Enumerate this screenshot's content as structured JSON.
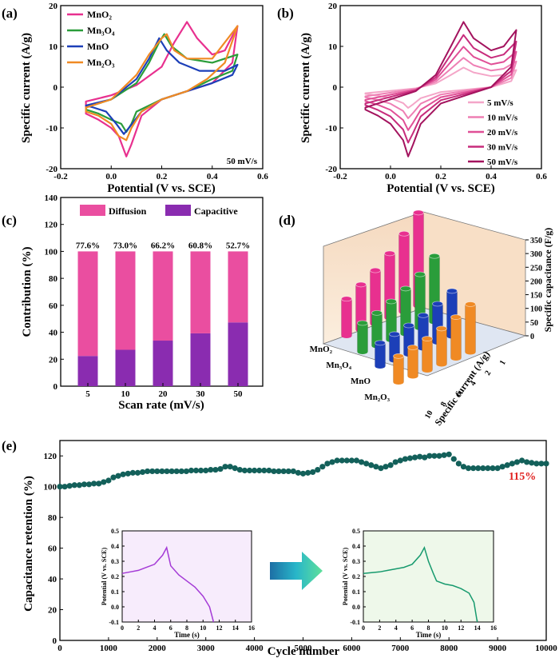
{
  "colors": {
    "MnO2": "#e8308f",
    "Mn3O4": "#2a9d3a",
    "MnO": "#1c3fb8",
    "Mn2O3": "#f08a24",
    "diffusion": "#ea4ea0",
    "capacitive": "#8a2cb0",
    "retention": "#13605a",
    "highlight": "#e0201e",
    "inset1_bg": "#f7ecfc",
    "inset1_line": "#a43ad6",
    "inset2_bg": "#eef8ea",
    "inset2_line": "#179a6e"
  },
  "chart_data": [
    {
      "panel": "(a)",
      "type": "line",
      "xlabel": "Potential (V vs. SCE)",
      "ylabel": "Specific current (A/g)",
      "xlim": [
        -0.2,
        0.6
      ],
      "ylim": [
        -20,
        20
      ],
      "xticks": [
        "-0.2",
        "0.0",
        "0.2",
        "0.4",
        "0.6"
      ],
      "yticks": [
        "-20",
        "-10",
        "0",
        "10",
        "20"
      ],
      "annotation": "50 mV/s",
      "legend": [
        "MnO₂",
        "Mn₃O₄",
        "MnO",
        "Mn₂O₃"
      ],
      "series": [
        {
          "name": "MnO2",
          "color_key": "MnO2",
          "loop": [
            [
              -0.1,
              -3.5
            ],
            [
              0.0,
              -2.0
            ],
            [
              0.1,
              0.5
            ],
            [
              0.2,
              5
            ],
            [
              0.25,
              11
            ],
            [
              0.3,
              16
            ],
            [
              0.34,
              12
            ],
            [
              0.4,
              8
            ],
            [
              0.45,
              9
            ],
            [
              0.5,
              15
            ],
            [
              0.48,
              6
            ],
            [
              0.4,
              1
            ],
            [
              0.3,
              -1
            ],
            [
              0.2,
              -3
            ],
            [
              0.12,
              -7
            ],
            [
              0.08,
              -14
            ],
            [
              0.06,
              -17
            ],
            [
              0.03,
              -12
            ],
            [
              0.0,
              -10
            ],
            [
              -0.05,
              -8
            ],
            [
              -0.1,
              -6.5
            ]
          ]
        },
        {
          "name": "Mn3O4",
          "color_key": "Mn3O4",
          "loop": [
            [
              -0.1,
              -5
            ],
            [
              0.0,
              -3
            ],
            [
              0.1,
              1
            ],
            [
              0.15,
              6
            ],
            [
              0.19,
              11
            ],
            [
              0.21,
              13
            ],
            [
              0.24,
              10
            ],
            [
              0.3,
              7
            ],
            [
              0.4,
              6
            ],
            [
              0.5,
              8
            ],
            [
              0.48,
              4
            ],
            [
              0.4,
              2
            ],
            [
              0.3,
              -1
            ],
            [
              0.2,
              -3
            ],
            [
              0.1,
              -6
            ],
            [
              0.08,
              -9
            ],
            [
              0.06,
              -11
            ],
            [
              0.04,
              -9
            ],
            [
              0.0,
              -8
            ],
            [
              -0.05,
              -6.5
            ],
            [
              -0.1,
              -5.5
            ]
          ]
        },
        {
          "name": "MnO",
          "color_key": "MnO",
          "loop": [
            [
              -0.1,
              -4.5
            ],
            [
              0.0,
              -3
            ],
            [
              0.1,
              2
            ],
            [
              0.15,
              7
            ],
            [
              0.19,
              12
            ],
            [
              0.22,
              9
            ],
            [
              0.27,
              6
            ],
            [
              0.35,
              4
            ],
            [
              0.45,
              4
            ],
            [
              0.5,
              5.5
            ],
            [
              0.48,
              3
            ],
            [
              0.4,
              1
            ],
            [
              0.3,
              -1
            ],
            [
              0.2,
              -3
            ],
            [
              0.12,
              -6
            ],
            [
              0.07,
              -10
            ],
            [
              0.05,
              -11.5
            ],
            [
              0.02,
              -9
            ],
            [
              -0.02,
              -6
            ],
            [
              -0.07,
              -5
            ],
            [
              -0.1,
              -4.5
            ]
          ]
        },
        {
          "name": "Mn2O3",
          "color_key": "Mn2O3",
          "loop": [
            [
              -0.1,
              -5
            ],
            [
              0.0,
              -3
            ],
            [
              0.1,
              3
            ],
            [
              0.15,
              8
            ],
            [
              0.2,
              12
            ],
            [
              0.22,
              13
            ],
            [
              0.25,
              9
            ],
            [
              0.3,
              7
            ],
            [
              0.4,
              7
            ],
            [
              0.5,
              15
            ],
            [
              0.45,
              6
            ],
            [
              0.38,
              2
            ],
            [
              0.3,
              -1
            ],
            [
              0.2,
              -3
            ],
            [
              0.12,
              -6
            ],
            [
              0.08,
              -10
            ],
            [
              0.06,
              -13
            ],
            [
              0.03,
              -12
            ],
            [
              0.0,
              -9
            ],
            [
              -0.05,
              -7
            ],
            [
              -0.1,
              -6
            ]
          ]
        }
      ]
    },
    {
      "panel": "(b)",
      "type": "line",
      "xlabel": "Potential (V vs. SCE)",
      "ylabel": "Specific current (A/g)",
      "xlim": [
        -0.2,
        0.6
      ],
      "ylim": [
        -20,
        20
      ],
      "xticks": [
        "-0.2",
        "0.0",
        "0.2",
        "0.4",
        "0.6"
      ],
      "yticks": [
        "-20",
        "-10",
        "0",
        "10",
        "20"
      ],
      "legend": [
        "5 mV/s",
        "10 mV/s",
        "20 mV/s",
        "30 mV/s",
        "50 mV/s"
      ],
      "series": [
        {
          "name": "5 mV/s",
          "color": "#f4a6c8",
          "scale": 0.3
        },
        {
          "name": "10 mV/s",
          "color": "#ee7fb4",
          "scale": 0.45
        },
        {
          "name": "20 mV/s",
          "color": "#e04f96",
          "scale": 0.62
        },
        {
          "name": "30 mV/s",
          "color": "#c72c7c",
          "scale": 0.8
        },
        {
          "name": "50 mV/s",
          "color": "#a3135e",
          "scale": 1.0
        }
      ],
      "base_loop": [
        [
          -0.1,
          -5
        ],
        [
          0.0,
          -3
        ],
        [
          0.1,
          -1
        ],
        [
          0.18,
          3
        ],
        [
          0.24,
          10
        ],
        [
          0.29,
          16
        ],
        [
          0.33,
          12
        ],
        [
          0.4,
          9
        ],
        [
          0.45,
          10
        ],
        [
          0.5,
          14
        ],
        [
          0.48,
          5
        ],
        [
          0.4,
          0
        ],
        [
          0.3,
          -2
        ],
        [
          0.2,
          -4
        ],
        [
          0.12,
          -9
        ],
        [
          0.09,
          -14
        ],
        [
          0.07,
          -17
        ],
        [
          0.05,
          -13
        ],
        [
          0.0,
          -9
        ],
        [
          -0.05,
          -7
        ],
        [
          -0.1,
          -5.5
        ]
      ]
    },
    {
      "panel": "(c)",
      "type": "bar",
      "xlabel": "Scan rate (mV/s)",
      "ylabel": "Contribution (%)",
      "ylim": [
        0,
        140
      ],
      "yticks": [
        "0",
        "20",
        "40",
        "60",
        "80",
        "100",
        "120",
        "140"
      ],
      "categories": [
        "5",
        "10",
        "20",
        "30",
        "50"
      ],
      "legend": [
        "Diffusion",
        "Capacitive"
      ],
      "series": [
        {
          "name": "Capacitive",
          "values": [
            22.4,
            27.0,
            33.8,
            39.2,
            47.3
          ]
        },
        {
          "name": "Diffusion",
          "values": [
            77.6,
            73.0,
            66.2,
            60.8,
            52.7
          ]
        }
      ],
      "data_labels": [
        "77.6%",
        "73.0%",
        "66.2%",
        "60.8%",
        "52.7%"
      ]
    },
    {
      "panel": "(d)",
      "type": "bar",
      "zlabel": "Specific capacitance (F/g)",
      "ylabel": "Specific current (A/g)",
      "zticks": [
        "0",
        "50",
        "100",
        "150",
        "200",
        "250",
        "300",
        "350"
      ],
      "current_ticks": [
        "1",
        "2",
        "4",
        "6",
        "8",
        "10"
      ],
      "materials": [
        "MnO₂",
        "Mn₃O₄",
        "MnO",
        "Mn₂O₃"
      ],
      "material_keys": [
        "MnO2",
        "Mn3O4",
        "MnO",
        "Mn2O3"
      ],
      "series": [
        {
          "name": "MnO2",
          "values": [
            340,
            285,
            235,
            195,
            165,
            135
          ]
        },
        {
          "name": "Mn3O4",
          "values": [
            240,
            195,
            165,
            140,
            120,
            105
          ]
        },
        {
          "name": "MnO",
          "values": [
            165,
            140,
            120,
            105,
            95,
            85
          ]
        },
        {
          "name": "Mn2O3",
          "values": [
            175,
            150,
            130,
            115,
            105,
            95
          ]
        }
      ]
    },
    {
      "panel": "(e)",
      "type": "scatter",
      "xlabel": "Cycle number",
      "ylabel": "Capacitance retention (%)",
      "xlim": [
        0,
        10000
      ],
      "ylim": [
        0,
        130
      ],
      "xticks": [
        "0",
        "1000",
        "2000",
        "3000",
        "4000",
        "5000",
        "6000",
        "7000",
        "8000",
        "9000",
        "10000"
      ],
      "yticks": [
        "0",
        "20",
        "40",
        "60",
        "80",
        "100",
        "120"
      ],
      "annotation": "115%",
      "points": [
        [
          0,
          100
        ],
        [
          100,
          100
        ],
        [
          200,
          100.5
        ],
        [
          300,
          101
        ],
        [
          400,
          101
        ],
        [
          500,
          101.5
        ],
        [
          600,
          101.5
        ],
        [
          700,
          102
        ],
        [
          800,
          102
        ],
        [
          900,
          103
        ],
        [
          1000,
          104
        ],
        [
          1100,
          106
        ],
        [
          1200,
          107
        ],
        [
          1300,
          108
        ],
        [
          1400,
          108.5
        ],
        [
          1500,
          109
        ],
        [
          1600,
          109
        ],
        [
          1700,
          109.5
        ],
        [
          1800,
          110
        ],
        [
          1900,
          110
        ],
        [
          2000,
          110
        ],
        [
          2100,
          110
        ],
        [
          2200,
          110
        ],
        [
          2300,
          110
        ],
        [
          2400,
          110
        ],
        [
          2500,
          110
        ],
        [
          2600,
          110
        ],
        [
          2700,
          110.5
        ],
        [
          2800,
          110.5
        ],
        [
          2900,
          110.5
        ],
        [
          3000,
          110.5
        ],
        [
          3100,
          111
        ],
        [
          3200,
          111
        ],
        [
          3300,
          111.5
        ],
        [
          3400,
          113
        ],
        [
          3500,
          113
        ],
        [
          3600,
          112
        ],
        [
          3700,
          111
        ],
        [
          3800,
          110.5
        ],
        [
          3900,
          110.5
        ],
        [
          4000,
          110.5
        ],
        [
          4100,
          110.5
        ],
        [
          4200,
          110.5
        ],
        [
          4300,
          110.5
        ],
        [
          4400,
          110
        ],
        [
          4500,
          110
        ],
        [
          4600,
          110
        ],
        [
          4700,
          110
        ],
        [
          4800,
          110
        ],
        [
          4900,
          109
        ],
        [
          5000,
          108.5
        ],
        [
          5100,
          109
        ],
        [
          5200,
          109.5
        ],
        [
          5300,
          111
        ],
        [
          5400,
          113
        ],
        [
          5500,
          115
        ],
        [
          5600,
          116
        ],
        [
          5700,
          117
        ],
        [
          5800,
          117
        ],
        [
          5900,
          117
        ],
        [
          6000,
          117
        ],
        [
          6100,
          117
        ],
        [
          6200,
          116
        ],
        [
          6300,
          115
        ],
        [
          6400,
          114
        ],
        [
          6500,
          113
        ],
        [
          6600,
          112
        ],
        [
          6700,
          113
        ],
        [
          6800,
          114
        ],
        [
          6900,
          116
        ],
        [
          7000,
          117
        ],
        [
          7100,
          118
        ],
        [
          7200,
          118.5
        ],
        [
          7300,
          119
        ],
        [
          7400,
          119.5
        ],
        [
          7500,
          119
        ],
        [
          7600,
          120
        ],
        [
          7700,
          120
        ],
        [
          7800,
          120
        ],
        [
          7900,
          120.5
        ],
        [
          8000,
          121
        ],
        [
          8100,
          118
        ],
        [
          8200,
          115
        ],
        [
          8300,
          113
        ],
        [
          8400,
          112
        ],
        [
          8500,
          112
        ],
        [
          8600,
          112
        ],
        [
          8700,
          112
        ],
        [
          8800,
          112
        ],
        [
          8900,
          112
        ],
        [
          9000,
          112
        ],
        [
          9100,
          113
        ],
        [
          9200,
          114
        ],
        [
          9300,
          115
        ],
        [
          9400,
          116
        ],
        [
          9500,
          117
        ],
        [
          9600,
          116
        ],
        [
          9700,
          115.5
        ],
        [
          9800,
          115
        ],
        [
          9900,
          115
        ],
        [
          10000,
          115
        ]
      ]
    },
    {
      "panel": "(e)-inset-1",
      "type": "line",
      "xlabel": "Time (s)",
      "ylabel": "Potential (V vs. SCE)",
      "xlim": [
        0,
        16
      ],
      "ylim": [
        -0.1,
        0.5
      ],
      "xticks": [
        "0",
        "2",
        "4",
        "6",
        "8",
        "10",
        "12",
        "14",
        "16"
      ],
      "yticks": [
        "-0.1",
        "0.0",
        "0.1",
        "0.2",
        "0.3",
        "0.4",
        "0.5"
      ],
      "points": [
        [
          0,
          0.22
        ],
        [
          1,
          0.23
        ],
        [
          2,
          0.24
        ],
        [
          3,
          0.26
        ],
        [
          4,
          0.28
        ],
        [
          5,
          0.34
        ],
        [
          5.5,
          0.39
        ],
        [
          6,
          0.27
        ],
        [
          7,
          0.21
        ],
        [
          8,
          0.17
        ],
        [
          9,
          0.13
        ],
        [
          10,
          0.07
        ],
        [
          10.8,
          0.0
        ],
        [
          11.3,
          -0.1
        ]
      ]
    },
    {
      "panel": "(e)-inset-2",
      "type": "line",
      "xlabel": "Time (s)",
      "ylabel": "Potential (V vs. SCE)",
      "xlim": [
        0,
        16
      ],
      "ylim": [
        -0.1,
        0.5
      ],
      "xticks": [
        "0",
        "2",
        "4",
        "6",
        "8",
        "10",
        "12",
        "14",
        "16"
      ],
      "yticks": [
        "-0.1",
        "0.0",
        "0.1",
        "0.2",
        "0.3",
        "0.4",
        "0.5"
      ],
      "points": [
        [
          0,
          0.22
        ],
        [
          1,
          0.225
        ],
        [
          2,
          0.23
        ],
        [
          3,
          0.24
        ],
        [
          4,
          0.25
        ],
        [
          5,
          0.26
        ],
        [
          6,
          0.28
        ],
        [
          7,
          0.34
        ],
        [
          7.5,
          0.39
        ],
        [
          8,
          0.3
        ],
        [
          8.6,
          0.22
        ],
        [
          9,
          0.17
        ],
        [
          10,
          0.15
        ],
        [
          11,
          0.14
        ],
        [
          12,
          0.12
        ],
        [
          13,
          0.09
        ],
        [
          13.6,
          0.03
        ],
        [
          14,
          -0.1
        ]
      ]
    }
  ]
}
